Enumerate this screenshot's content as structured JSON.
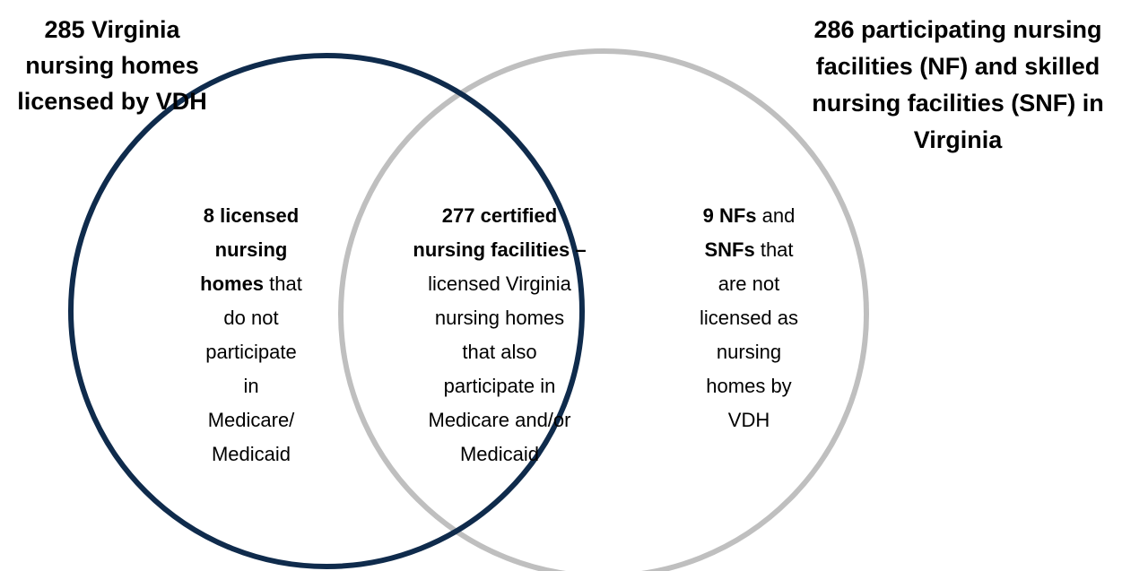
{
  "sets": [
    {
      "label_lines": [
        "285 Virginia",
        "nursing homes",
        "licensed by VDH"
      ]
    },
    {
      "label_lines": [
        "286 participating nursing",
        "facilities (NF) and skilled",
        "nursing facilities (SNF) in",
        "Virginia"
      ]
    }
  ],
  "regions": [
    {
      "lines": [
        [
          {
            "text": "8 licensed",
            "bold": true
          }
        ],
        [
          {
            "text": "nursing",
            "bold": true
          }
        ],
        [
          {
            "text": "homes",
            "bold": true
          },
          {
            "text": " that",
            "bold": false
          }
        ],
        [
          {
            "text": "do not",
            "bold": false
          }
        ],
        [
          {
            "text": "participate",
            "bold": false
          }
        ],
        [
          {
            "text": "in",
            "bold": false
          }
        ],
        [
          {
            "text": "Medicare/",
            "bold": false
          }
        ],
        [
          {
            "text": "Medicaid",
            "bold": false
          }
        ]
      ]
    },
    {
      "lines": [
        [
          {
            "text": "277 certified",
            "bold": true
          }
        ],
        [
          {
            "text": "nursing facilities",
            "bold": true
          },
          {
            "text": " –",
            "bold": true
          }
        ],
        [
          {
            "text": "licensed Virginia",
            "bold": false
          }
        ],
        [
          {
            "text": "nursing homes",
            "bold": false
          }
        ],
        [
          {
            "text": "that also",
            "bold": false
          }
        ],
        [
          {
            "text": "participate in",
            "bold": false
          }
        ],
        [
          {
            "text": "Medicare and/or",
            "bold": false
          }
        ],
        [
          {
            "text": "Medicaid",
            "bold": false
          }
        ]
      ]
    },
    {
      "lines": [
        [
          {
            "text": "9 NFs",
            "bold": true
          },
          {
            "text": " and",
            "bold": false
          }
        ],
        [
          {
            "text": "SNFs",
            "bold": true
          },
          {
            "text": " that",
            "bold": false
          }
        ],
        [
          {
            "text": "are not",
            "bold": false
          }
        ],
        [
          {
            "text": "licensed as",
            "bold": false
          }
        ],
        [
          {
            "text": "nursing",
            "bold": false
          }
        ],
        [
          {
            "text": "homes by",
            "bold": false
          }
        ],
        [
          {
            "text": "VDH",
            "bold": false
          }
        ]
      ]
    }
  ]
}
